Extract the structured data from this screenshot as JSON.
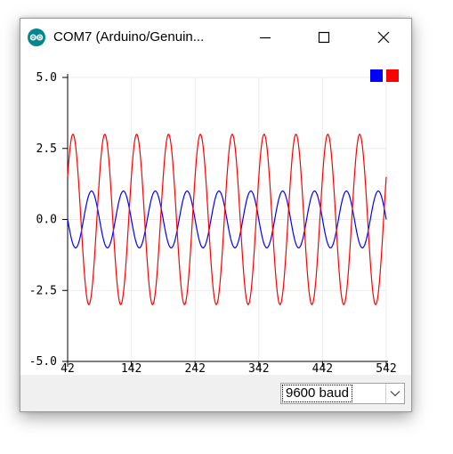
{
  "window": {
    "title": "COM7 (Arduino/Genuin...",
    "controls": {
      "minimize_icon": "minimize-icon",
      "maximize_icon": "maximize-icon",
      "close_icon": "close-icon"
    }
  },
  "chart_data": {
    "type": "line",
    "xlim": [
      42,
      542
    ],
    "ylim": [
      -5,
      5
    ],
    "x_ticks": [
      42,
      142,
      242,
      342,
      442,
      542
    ],
    "x_tick_labels": [
      "42",
      "142",
      "242",
      "342",
      "442",
      "542"
    ],
    "y_ticks": [
      5,
      2.5,
      0,
      -2.5,
      -5
    ],
    "y_tick_labels": [
      "5.0",
      "2.5",
      "0.0",
      "-2.5",
      "-5.0"
    ],
    "grid": true,
    "legend_placement": "top-right",
    "series": [
      {
        "color": "#0000ff",
        "function": "sine",
        "amplitude": 1,
        "period": 50,
        "phase_deg": 180
      },
      {
        "color": "#ff0000",
        "function": "sine",
        "amplitude": 3,
        "period": 50,
        "phase_deg": 30
      }
    ]
  },
  "footer": {
    "baud_value": "9600 baud"
  },
  "colors": {
    "blue_series": "#0000ff",
    "red_series": "#ff0000",
    "accent_icon": "#00878f"
  }
}
